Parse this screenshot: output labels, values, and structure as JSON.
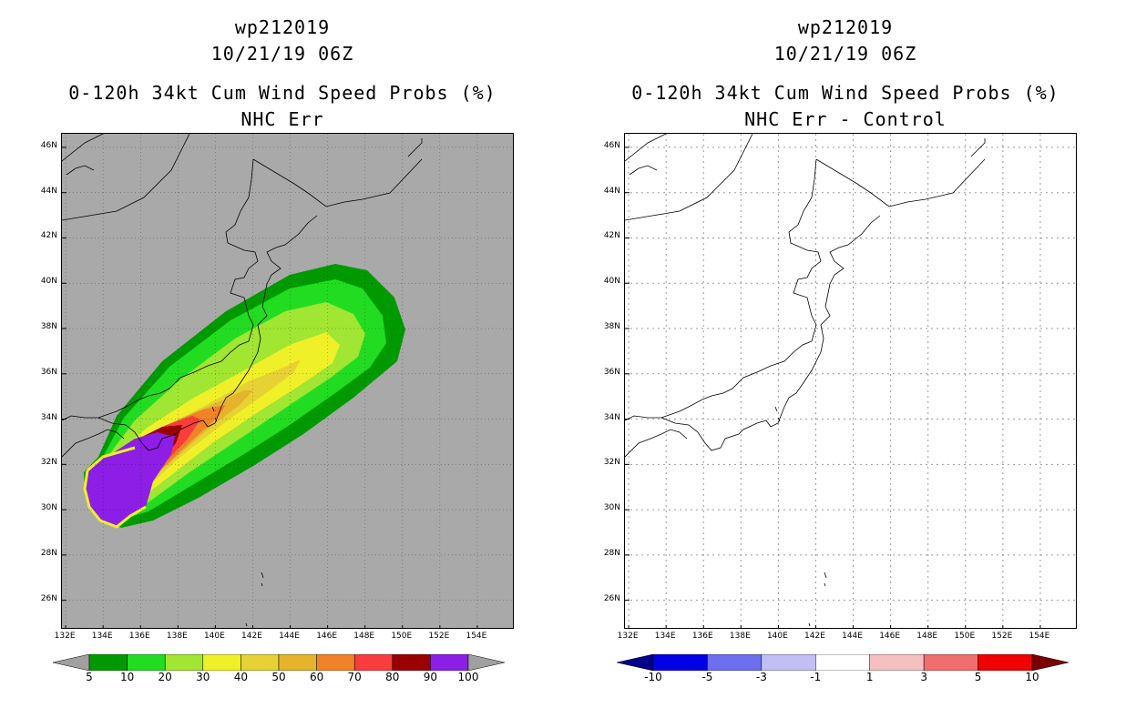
{
  "left": {
    "title_lines": [
      "wp212019",
      "10/21/19 06Z",
      "0-120h 34kt Cum Wind Speed Probs (%)",
      "NHC Err"
    ],
    "colorbar": {
      "labels": [
        "5",
        "10",
        "20",
        "30",
        "40",
        "50",
        "60",
        "70",
        "80",
        "90",
        "100"
      ],
      "colors": [
        "#a0a0a0",
        "#009a00",
        "#22dc22",
        "#a0e632",
        "#f0f028",
        "#e6d234",
        "#e6b42c",
        "#f08228",
        "#fa3c3c",
        "#9a0000",
        "#8c1ee6",
        "#a0a0a0"
      ]
    }
  },
  "right": {
    "title_lines": [
      "wp212019",
      "10/21/19 06Z",
      "0-120h 34kt Cum Wind Speed Probs (%)",
      "NHC Err - Control"
    ],
    "colorbar": {
      "labels": [
        "-10",
        "-5",
        "-3",
        "-1",
        "1",
        "3",
        "5",
        "10"
      ],
      "colors": [
        "#00008c",
        "#0000e6",
        "#6e6ef0",
        "#c0c0f5",
        "#ffffff",
        "#f5c0c0",
        "#f06e6e",
        "#f00000",
        "#7a0000"
      ]
    }
  },
  "lat_labels": [
    "46N",
    "44N",
    "42N",
    "40N",
    "38N",
    "36N",
    "34N",
    "32N",
    "30N",
    "28N",
    "26N"
  ],
  "lon_labels": [
    "132E",
    "134E",
    "136E",
    "138E",
    "140E",
    "142E",
    "144E",
    "146E",
    "148E",
    "150E",
    "152E",
    "154E"
  ],
  "map_extent": {
    "lon": [
      131.8,
      156.0
    ],
    "lat": [
      24.7,
      46.6
    ]
  },
  "probability_contours_pct": [
    5,
    10,
    20,
    30,
    40,
    50,
    60,
    70,
    80,
    90
  ]
}
